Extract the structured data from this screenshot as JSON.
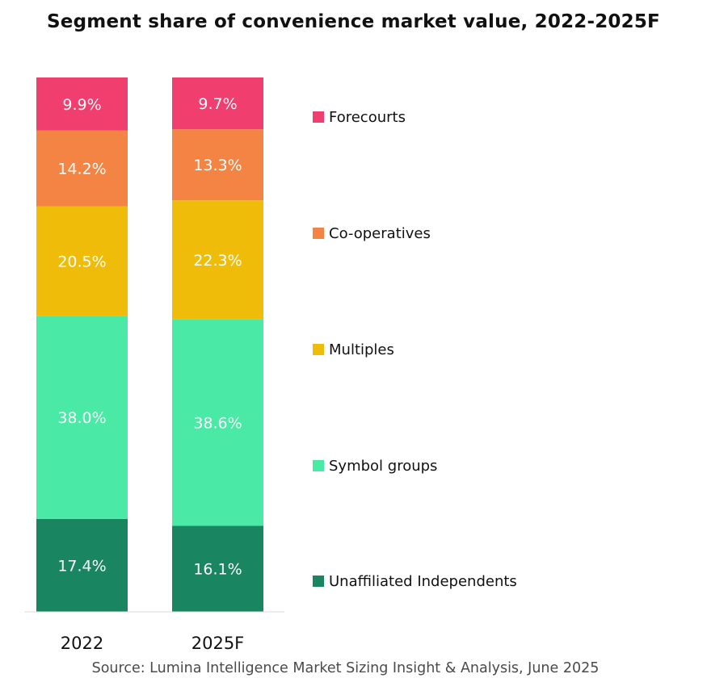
{
  "title": "Segment share of convenience market value, 2022-2025F",
  "source": "Source: Lumina Intelligence Market Sizing Insight & Analysis, June 2025",
  "chart_data": {
    "type": "bar",
    "stacked": true,
    "percent_stacked": true,
    "categories": [
      "2022",
      "2025F"
    ],
    "series": [
      {
        "name": "Unaffiliated Independents",
        "values": [
          17.4,
          16.1
        ],
        "labels": [
          "17.4%",
          "16.1%"
        ],
        "color": "#1a8561"
      },
      {
        "name": "Symbol groups",
        "values": [
          38.0,
          38.6
        ],
        "labels": [
          "38.0%",
          "38.6%"
        ],
        "color": "#4aeaa6"
      },
      {
        "name": "Multiples",
        "values": [
          20.5,
          22.3
        ],
        "labels": [
          "20.5%",
          "22.3%"
        ],
        "color": "#f0bc0a"
      },
      {
        "name": "Co-operatives",
        "values": [
          14.2,
          13.3
        ],
        "labels": [
          "14.2%",
          "13.3%"
        ],
        "color": "#f48444"
      },
      {
        "name": "Forecourts",
        "values": [
          9.9,
          9.7
        ],
        "labels": [
          "9.9%",
          "9.7%"
        ],
        "color": "#f03e6e"
      }
    ],
    "legend_position": "right",
    "grid": false
  }
}
